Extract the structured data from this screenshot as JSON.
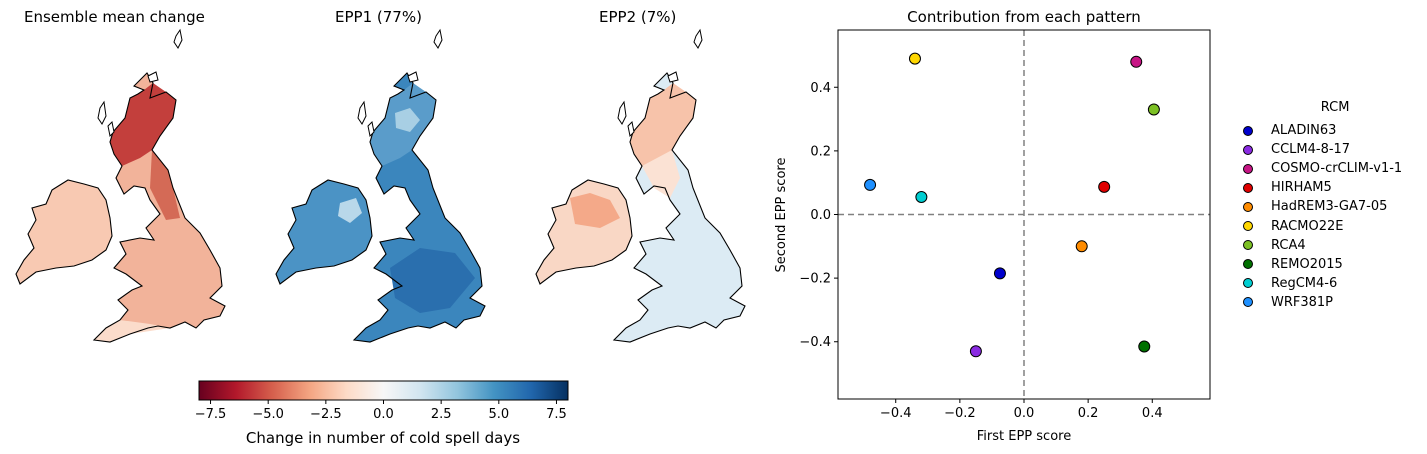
{
  "maps": [
    {
      "title": "Ensemble mean change",
      "palette": "mean"
    },
    {
      "title": "EPP1 (77%)",
      "palette": "epp1"
    },
    {
      "title": "EPP2 (7%)",
      "palette": "epp2"
    }
  ],
  "colorbar": {
    "label": "Change in number of cold spell days",
    "ticks": [
      "−7.5",
      "−5.0",
      "−2.5",
      "0.0",
      "2.5",
      "5.0",
      "7.5"
    ],
    "tick_values": [
      -7.5,
      -5.0,
      -2.5,
      0.0,
      2.5,
      5.0,
      7.5
    ],
    "range": [
      -8,
      8
    ],
    "colormap": "RdBu"
  },
  "chart_data": {
    "type": "scatter",
    "title": "Contribution from each pattern",
    "xlabel": "First EPP score",
    "ylabel": "Second EPP score",
    "xlim": [
      -0.58,
      0.58
    ],
    "ylim": [
      -0.58,
      0.58
    ],
    "xticks": [
      -0.4,
      -0.2,
      0.0,
      0.2,
      0.4
    ],
    "xtick_labels": [
      "−0.4",
      "−0.2",
      "0.0",
      "0.2",
      "0.4"
    ],
    "yticks": [
      -0.4,
      -0.2,
      0.0,
      0.2,
      0.4
    ],
    "ytick_labels": [
      "−0.4",
      "−0.2",
      "0.0",
      "0.2",
      "0.4"
    ],
    "reference_lines": {
      "x": 0.0,
      "y": 0.0,
      "style": "dashed",
      "color": "#808080"
    },
    "grid": false,
    "legend_title": "RCM",
    "legend_position": "right",
    "series": [
      {
        "name": "ALADIN63",
        "color": "#0000cd",
        "x": -0.075,
        "y": -0.185
      },
      {
        "name": "CCLM4-8-17",
        "color": "#8a2be2",
        "x": -0.15,
        "y": -0.43
      },
      {
        "name": "COSMO-crCLIM-v1-1",
        "color": "#c71585",
        "x": 0.35,
        "y": 0.48
      },
      {
        "name": "HIRHAM5",
        "color": "#e00000",
        "x": 0.25,
        "y": 0.087
      },
      {
        "name": "HadREM3-GA7-05",
        "color": "#ff8c00",
        "x": 0.18,
        "y": -0.1
      },
      {
        "name": "RACMO22E",
        "color": "#ffd700",
        "x": -0.34,
        "y": 0.49
      },
      {
        "name": "RCA4",
        "color": "#7cc024",
        "x": 0.405,
        "y": 0.33
      },
      {
        "name": "REMO2015",
        "color": "#007000",
        "x": 0.375,
        "y": -0.415
      },
      {
        "name": "RegCM4-6",
        "color": "#00ced1",
        "x": -0.32,
        "y": 0.055
      },
      {
        "name": "WRF381P",
        "color": "#1e90ff",
        "x": -0.48,
        "y": 0.093
      }
    ]
  }
}
